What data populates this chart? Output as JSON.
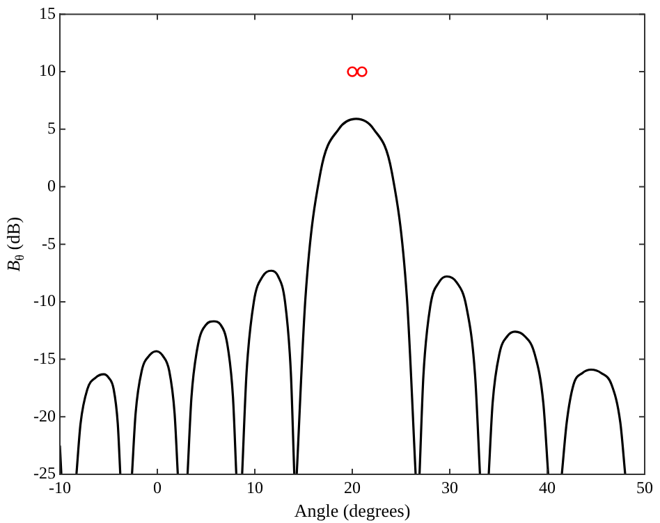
{
  "chart_data": {
    "type": "line",
    "xlabel": "Angle (degrees)",
    "ylabel": "B$_{θ}$ (dB)",
    "xlim": [
      -10,
      50
    ],
    "ylim": [
      -25,
      15
    ],
    "xticks": [
      -10,
      0,
      10,
      20,
      30,
      40,
      50
    ],
    "yticks": [
      -25,
      -20,
      -15,
      -10,
      -5,
      0,
      5,
      10,
      15
    ],
    "grid": false,
    "legend": false,
    "series": [
      {
        "color": "#000000",
        "marker": "none",
        "line_style": "solid",
        "x": [
          -10,
          -9.85,
          -9,
          -8.3,
          -7.88,
          -7.18,
          -6.34,
          -5.5,
          -4.99,
          -4.48,
          -4.06,
          -3.8,
          -3.2,
          -2.6,
          -2.23,
          -1.6,
          -0.85,
          -0.1,
          0.56,
          1.22,
          1.77,
          2.1,
          2.6,
          3.1,
          3.5,
          4.18,
          4.99,
          5.8,
          6.49,
          7.18,
          7.76,
          8.1,
          8.4,
          8.7,
          9.15,
          9.9,
          10.8,
          11.7,
          12.4,
          13.1,
          13.7,
          14.05,
          14.2,
          14.3,
          15.2,
          16.75,
          18.6,
          20.4,
          22.2,
          24.05,
          25.6,
          26.5,
          26.7,
          26.9,
          27.3,
          28.0,
          28.9,
          29.7,
          30.7,
          31.7,
          32.6,
          33.1,
          33.5,
          34.0,
          34.4,
          35.1,
          35.9,
          36.7,
          37.7,
          38.7,
          39.6,
          40.1,
          40.8,
          41.5,
          42.0,
          42.7,
          43.6,
          44.5,
          45.55,
          46.6,
          47.5,
          48.0
        ],
        "values": [
          -22.5,
          -25,
          null,
          -25,
          -20.6,
          -17.6,
          -16.6,
          -16.3,
          -16.6,
          -17.6,
          -20.6,
          -25,
          null,
          -25,
          -19.7,
          -16,
          -14.7,
          -14.3,
          -14.7,
          -16,
          -19.7,
          -25,
          null,
          -25,
          -18.3,
          -13.7,
          -12,
          -11.7,
          -12,
          -13.7,
          -18.3,
          -25,
          null,
          -25,
          -16.2,
          -10,
          -7.8,
          -7.3,
          -7.8,
          -10,
          -16.2,
          -25,
          null,
          -25,
          -9.6,
          1.3,
          5,
          5.9,
          5,
          1.3,
          -9.6,
          -25,
          null,
          -25,
          -16.4,
          -10.4,
          -8.3,
          -7.8,
          -8.3,
          -10.4,
          -16.4,
          -25,
          null,
          -25,
          -18.8,
          -14.5,
          -13,
          -12.6,
          -13,
          -14.5,
          -18.8,
          -25,
          null,
          -25,
          -20.5,
          -17.2,
          -16.2,
          -15.9,
          -16.2,
          -17.2,
          -20.5,
          -25
        ]
      },
      {
        "type": "scatter",
        "color": "#ff0000",
        "marker": "circle",
        "x": [
          20,
          21
        ],
        "values": [
          10,
          10
        ]
      }
    ]
  }
}
